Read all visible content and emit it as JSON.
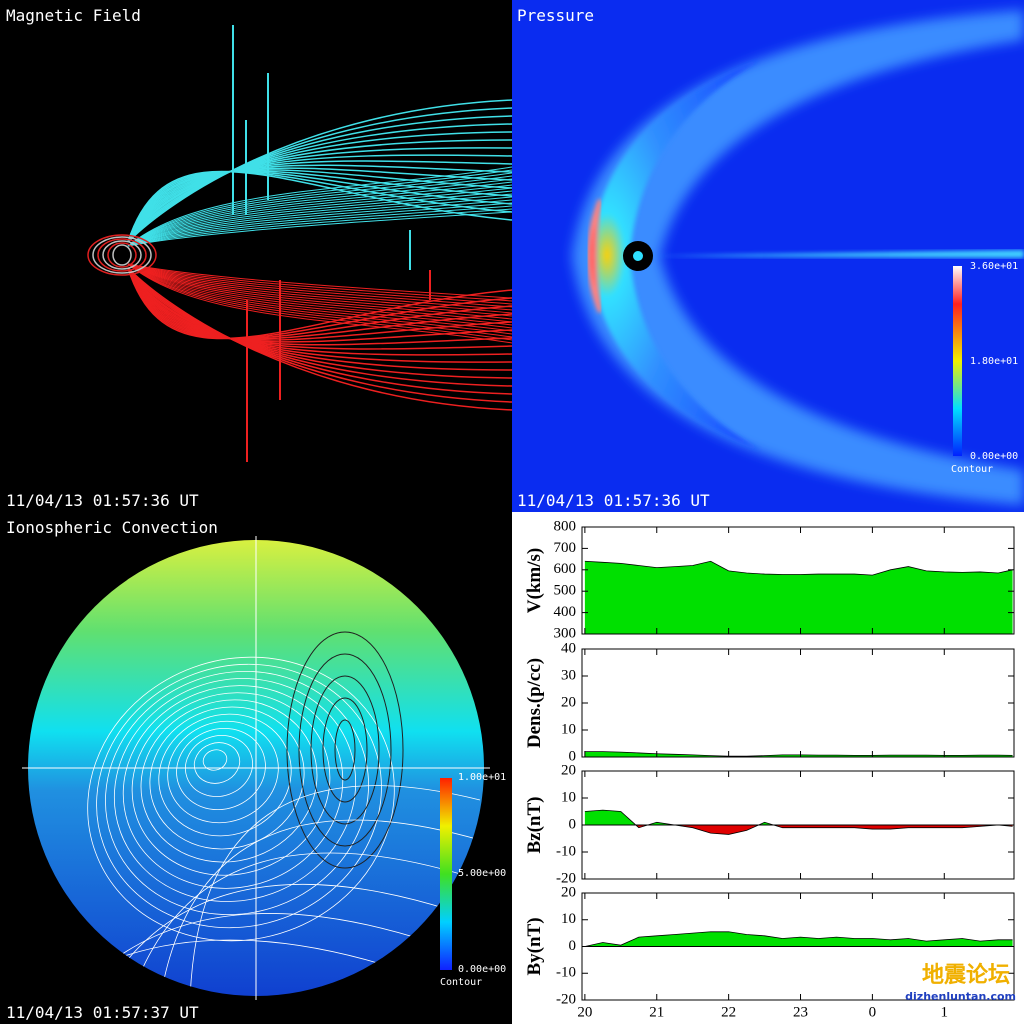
{
  "panels": {
    "magnetic": {
      "title": "Magnetic Field",
      "timestamp": "11/04/13 01:57:36 UT"
    },
    "pressure": {
      "title": "Pressure",
      "timestamp": "11/04/13 01:57:36 UT",
      "colorbar": {
        "labels": [
          "3.60e+01",
          "1.80e+01",
          "0.00e+00"
        ],
        "title": "Contour"
      }
    },
    "ionosphere": {
      "title": "Ionospheric Convection",
      "timestamp": "11/04/13 01:57:37 UT",
      "colorbar": {
        "labels": [
          "1.00e+01",
          "5.00e+00",
          "0.00e+00"
        ],
        "title": "Contour"
      }
    }
  },
  "watermark": {
    "text": "地震论坛",
    "url": "dizhenluntan.com"
  },
  "chart_data": [
    {
      "type": "area",
      "ylabel": "V(km/s)",
      "color": "#00e000",
      "x": [
        20,
        20.25,
        20.5,
        20.75,
        21,
        21.25,
        21.5,
        21.75,
        22,
        22.25,
        22.5,
        22.75,
        23,
        23.25,
        23.5,
        23.75,
        24,
        24.25,
        24.5,
        24.75,
        25,
        25.25,
        25.5,
        25.75,
        25.95
      ],
      "values": [
        640,
        635,
        630,
        620,
        610,
        615,
        620,
        640,
        595,
        585,
        580,
        578,
        578,
        580,
        580,
        580,
        575,
        600,
        615,
        595,
        590,
        588,
        590,
        585,
        600
      ],
      "xlim": [
        19.96,
        25.97
      ],
      "ylim": [
        300,
        800
      ],
      "yticks": [
        300,
        400,
        500,
        600,
        700,
        800
      ]
    },
    {
      "type": "area",
      "ylabel": "Dens.(p/cc)",
      "color": "#00e000",
      "x": [
        20,
        20.25,
        20.5,
        20.75,
        21,
        21.25,
        21.5,
        21.75,
        22,
        22.25,
        22.5,
        22.75,
        23,
        23.25,
        23.5,
        23.75,
        24,
        24.25,
        24.5,
        24.75,
        25,
        25.25,
        25.5,
        25.75,
        25.95
      ],
      "values": [
        2,
        2,
        1.8,
        1.5,
        1.2,
        1,
        0.8,
        0.5,
        0.3,
        0.3,
        0.5,
        0.8,
        0.8,
        0.7,
        0.7,
        0.6,
        0.6,
        0.7,
        0.7,
        0.7,
        0.6,
        0.6,
        0.7,
        0.7,
        0.6
      ],
      "xlim": [
        19.96,
        25.97
      ],
      "ylim": [
        0,
        40
      ],
      "yticks": [
        0,
        10,
        20,
        30,
        40
      ]
    },
    {
      "type": "area",
      "ylabel": "Bz(nT)",
      "color": "#00e000",
      "negative_color": "#e00000",
      "x": [
        20,
        20.25,
        20.5,
        20.75,
        21,
        21.25,
        21.5,
        21.75,
        22,
        22.25,
        22.5,
        22.75,
        23,
        23.25,
        23.5,
        23.75,
        24,
        24.25,
        24.5,
        24.75,
        25,
        25.25,
        25.5,
        25.75,
        25.95
      ],
      "values": [
        5,
        5.5,
        5,
        -1,
        1,
        0,
        -1,
        -3,
        -3.5,
        -2,
        1,
        -1,
        -1,
        -1,
        -1,
        -1,
        -1.5,
        -1.5,
        -1,
        -1,
        -1,
        -1,
        -0.5,
        0,
        -0.5
      ],
      "xlim": [
        19.96,
        25.97
      ],
      "ylim": [
        -20,
        20
      ],
      "yticks": [
        -20,
        -10,
        0,
        10,
        20
      ]
    },
    {
      "type": "area",
      "ylabel": "By(nT)",
      "color": "#00e000",
      "negative_color": "#e00000",
      "x": [
        20,
        20.25,
        20.5,
        20.75,
        21,
        21.25,
        21.5,
        21.75,
        22,
        22.25,
        22.5,
        22.75,
        23,
        23.25,
        23.5,
        23.75,
        24,
        24.25,
        24.5,
        24.75,
        25,
        25.25,
        25.5,
        25.75,
        25.95
      ],
      "values": [
        0,
        1.5,
        0.5,
        3.5,
        4,
        4.5,
        5,
        5.5,
        5.5,
        4.5,
        4,
        3,
        3.5,
        3,
        3.5,
        3,
        3,
        2.5,
        3,
        2,
        2.5,
        3,
        2,
        2.5,
        2.5
      ],
      "xlim": [
        19.96,
        25.97
      ],
      "ylim": [
        -20,
        20
      ],
      "yticks": [
        -20,
        -10,
        0,
        10,
        20
      ],
      "xticks": [
        20,
        21,
        22,
        23,
        {
          "value": 24,
          "label": "0"
        },
        {
          "value": 25,
          "label": "1"
        }
      ]
    }
  ]
}
